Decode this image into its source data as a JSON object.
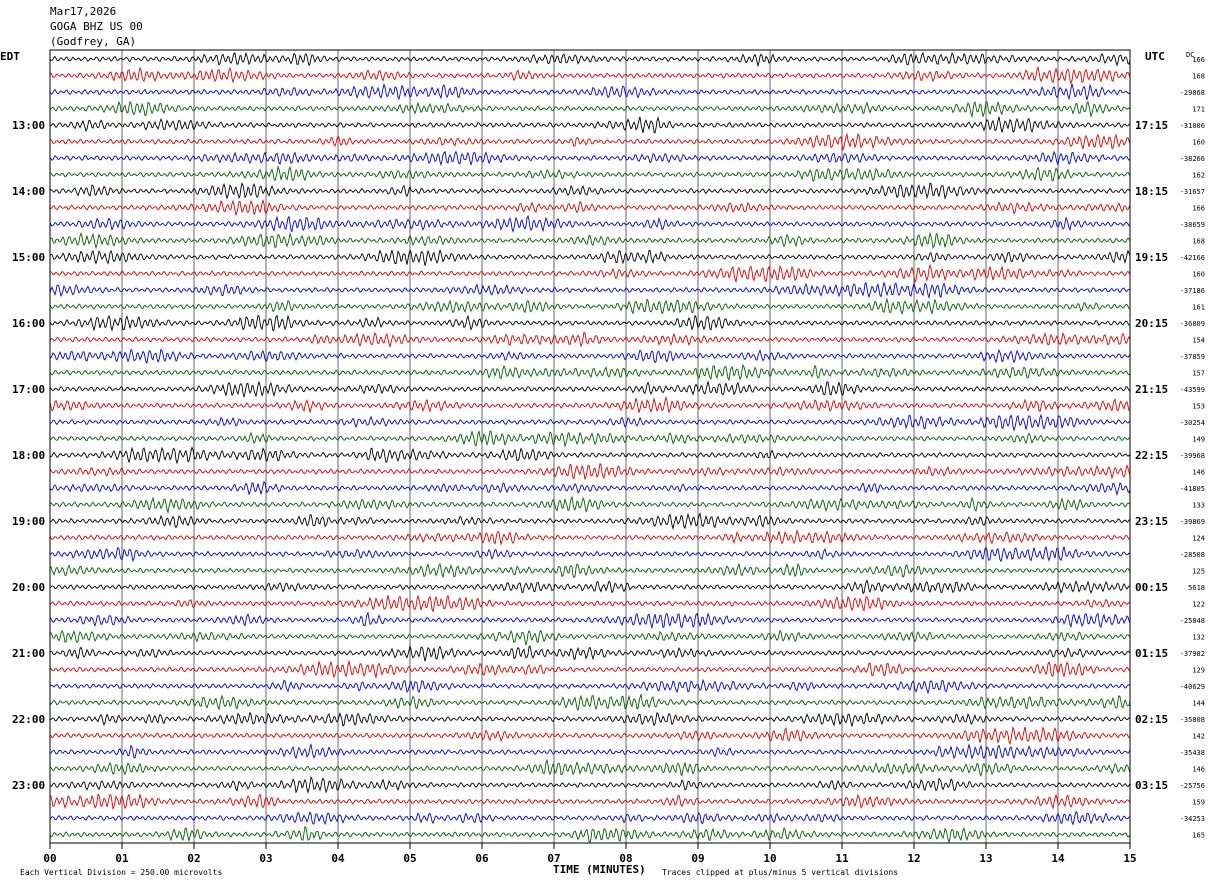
{
  "header": {
    "date": "Mar17,2026",
    "station": "GOGA BHZ US 00",
    "location": "(Godfrey, GA)"
  },
  "left_zone": "EDT",
  "right_zone": "UTC",
  "dc_label": "DC",
  "footer": {
    "scale_text": "Each Vertical Division =  250.00 microvolts",
    "xlabel": "TIME (MINUTES)",
    "clip_note": "Traces clipped at plus/minus 5 vertical divisions"
  },
  "chart_data": {
    "type": "line",
    "title": "GOGA BHZ US 00",
    "xlabel": "TIME (MINUTES)",
    "xlim": [
      0,
      15
    ],
    "x_ticks": [
      "00",
      "01",
      "02",
      "03",
      "04",
      "05",
      "06",
      "07",
      "08",
      "09",
      "10",
      "11",
      "12",
      "13",
      "14",
      "15"
    ],
    "trace_colors": [
      "#000000",
      "#e00000",
      "#0000e0",
      "#006000"
    ],
    "trace_count": 48,
    "left_time_labels": [
      "13:00",
      "14:00",
      "15:00",
      "16:00",
      "17:00",
      "18:00",
      "19:00",
      "20:00",
      "21:00",
      "22:00",
      "23:00"
    ],
    "right_time_labels": [
      "17:15",
      "18:15",
      "19:15",
      "20:15",
      "21:15",
      "22:15",
      "23:15",
      "00:15",
      "01:15",
      "02:15",
      "03:15"
    ],
    "dc_offsets": [
      "166",
      "168",
      "-29868",
      "171",
      "-31006",
      "160",
      "-38266",
      "162",
      "-31657",
      "166",
      "-38659",
      "168",
      "-42166",
      "160",
      "-37186",
      "161",
      "-36809",
      "154",
      "-37859",
      "157",
      "-43599",
      "153",
      "-30254",
      "149",
      "-39968",
      "146",
      "-41805",
      "133",
      "-39869",
      "124",
      "-28508",
      "125",
      "5618",
      "122",
      "-25848",
      "132",
      "-37982",
      "129",
      "-40629",
      "144",
      "-35808",
      "142",
      "-35438",
      "146",
      "-25756",
      "159",
      "-34253",
      "165"
    ]
  }
}
